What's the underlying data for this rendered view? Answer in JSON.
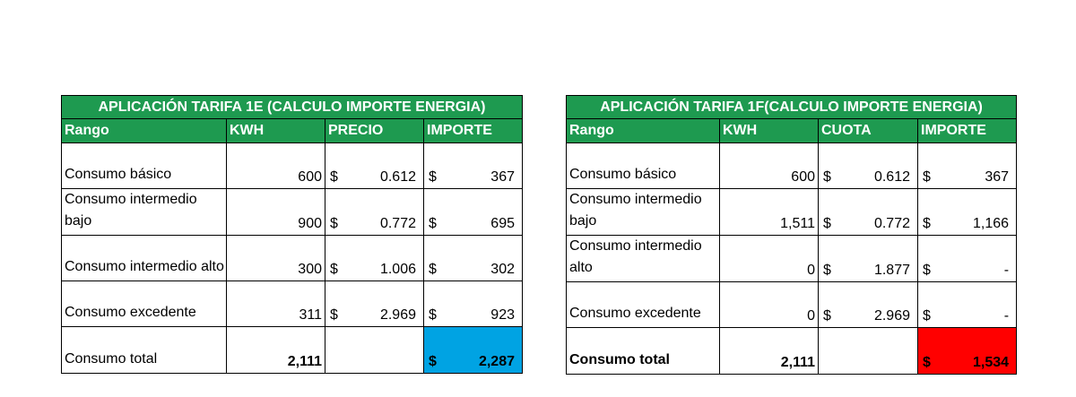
{
  "table_1e": {
    "title": "APLICACIÓN TARIFA 1E (CALCULO IMPORTE ENERGIA)",
    "headers": [
      "Rango",
      "KWH",
      "PRECIO",
      "IMPORTE"
    ],
    "rows": [
      {
        "label": "Consumo básico",
        "kwh": "600",
        "sym1": "$",
        "price": "0.612",
        "sym2": "$",
        "amount": "367"
      },
      {
        "label": "Consumo intermedio bajo",
        "kwh": "900",
        "sym1": "$",
        "price": "0.772",
        "sym2": "$",
        "amount": "695"
      },
      {
        "label": "Consumo intermedio alto",
        "kwh": "300",
        "sym1": "$",
        "price": "1.006",
        "sym2": "$",
        "amount": "302"
      },
      {
        "label": "Consumo excedente",
        "kwh": "311",
        "sym1": "$",
        "price": "2.969",
        "sym2": "$",
        "amount": "923"
      }
    ],
    "total": {
      "label": "Consumo total",
      "kwh": "2,111",
      "sym": "$",
      "amount": "2,287",
      "highlight": "#00a3e3"
    }
  },
  "table_1f": {
    "title": "APLICACIÓN TARIFA 1F(CALCULO IMPORTE ENERGIA)",
    "headers": [
      "Rango",
      "KWH",
      "CUOTA",
      "IMPORTE"
    ],
    "rows": [
      {
        "label": "Consumo básico",
        "kwh": "600",
        "sym1": "$",
        "price": "0.612",
        "sym2": "$",
        "amount": "367"
      },
      {
        "label": "Consumo intermedio bajo",
        "kwh": "1,511",
        "sym1": "$",
        "price": "0.772",
        "sym2": "$",
        "amount": "1,166"
      },
      {
        "label": "Consumo intermedio alto",
        "kwh": "0",
        "sym1": "$",
        "price": "1.877",
        "sym2": "$",
        "amount": "-"
      },
      {
        "label": "Consumo excedente",
        "kwh": "0",
        "sym1": "$",
        "price": "2.969",
        "sym2": "$",
        "amount": "-"
      }
    ],
    "total": {
      "label": "Consumo total",
      "kwh": "2,111",
      "sym": "$",
      "amount": "1,534",
      "highlight": "#ff0000"
    }
  }
}
